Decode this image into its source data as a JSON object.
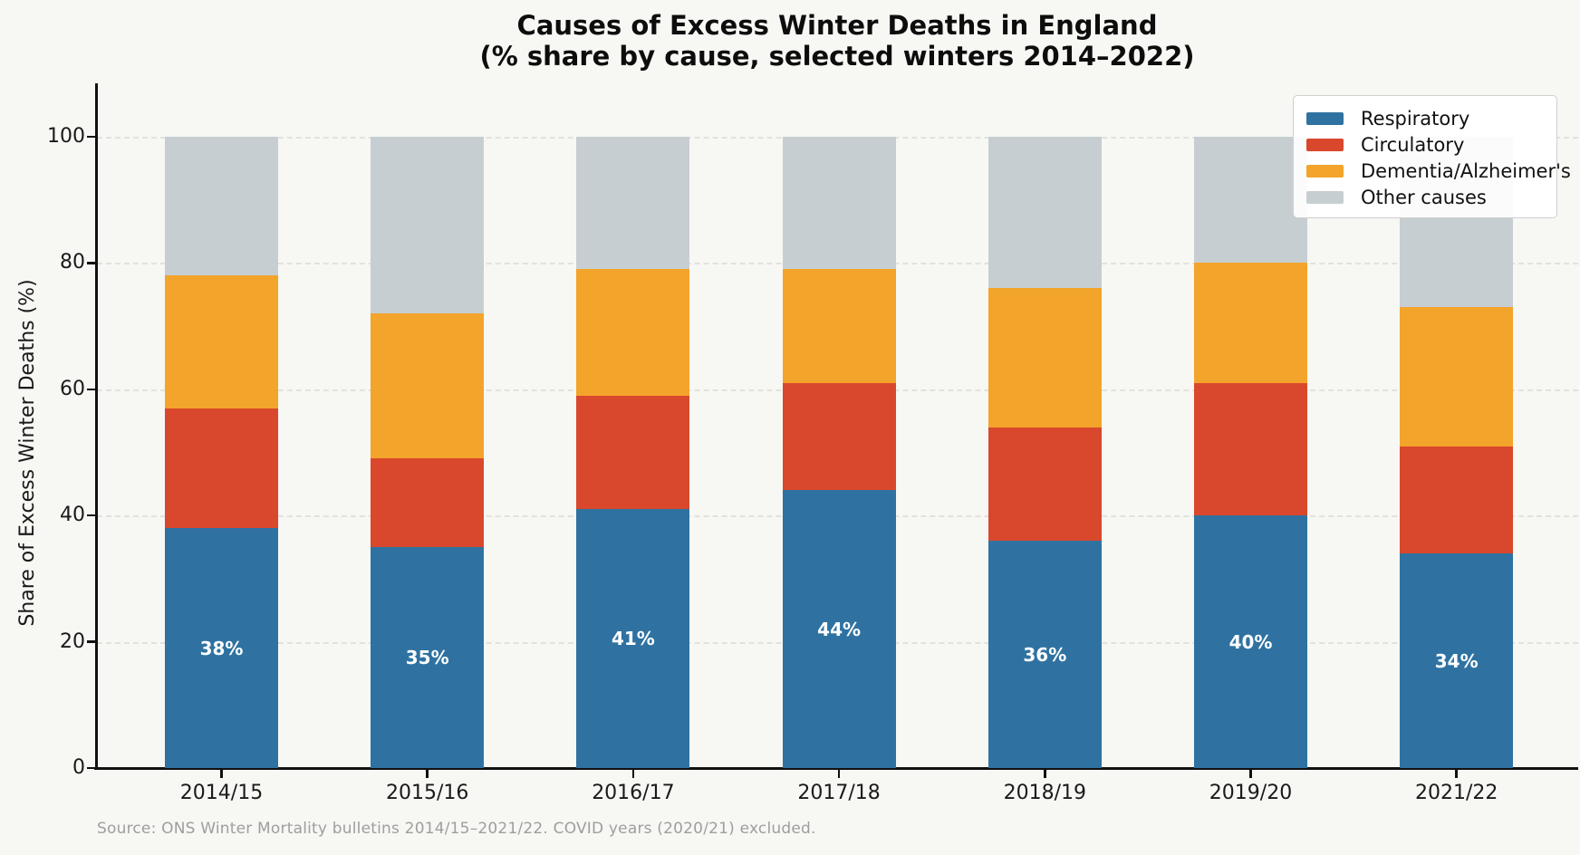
{
  "title": {
    "line1": "Causes of Excess Winter Deaths in England",
    "line2": "(% share by cause, selected winters 2014–2022)"
  },
  "source_note": "Source: ONS Winter Mortality bulletins 2014/15–2021/22. COVID years (2020/21) excluded.",
  "chart_data": {
    "type": "bar",
    "stacked": true,
    "title": "Causes of Excess Winter Deaths in England (% share by cause, selected winters 2014–2022)",
    "categories": [
      "2014/15",
      "2015/16",
      "2016/17",
      "2017/18",
      "2018/19",
      "2019/20",
      "2021/22"
    ],
    "series": [
      {
        "name": "Respiratory",
        "color": "#2f72a1",
        "values": [
          38,
          35,
          41,
          44,
          36,
          40,
          34
        ]
      },
      {
        "name": "Circulatory",
        "color": "#d9482c",
        "values": [
          19,
          14,
          18,
          17,
          18,
          21,
          17
        ]
      },
      {
        "name": "Dementia/Alzheimer's",
        "color": "#f3a42a",
        "values": [
          21,
          23,
          20,
          18,
          22,
          19,
          22
        ]
      },
      {
        "name": "Other causes",
        "color": "#c7ced2",
        "values": [
          22,
          28,
          21,
          21,
          24,
          20,
          27
        ]
      }
    ],
    "bar_value_labels": [
      "38%",
      "35%",
      "41%",
      "44%",
      "36%",
      "40%",
      "34%"
    ],
    "xlabel": "",
    "ylabel": "Share of Excess Winter Deaths (%)",
    "yticks": [
      0,
      20,
      40,
      60,
      80,
      100
    ],
    "ylim": [
      0,
      100
    ],
    "grid": "horizontal dashed",
    "legend_position": "upper right",
    "background_color": "#f7f7f4"
  }
}
